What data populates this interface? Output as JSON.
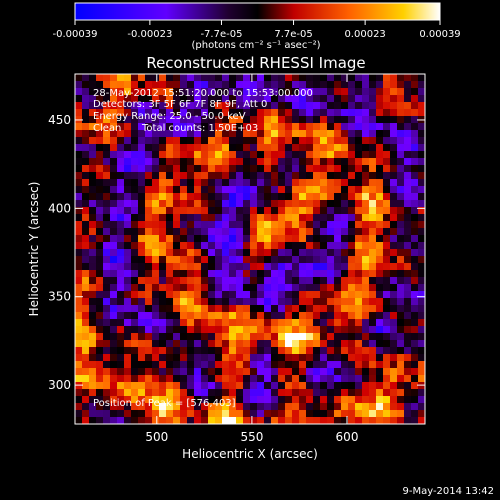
{
  "colorbar": {
    "ticks": [
      "-0.00039",
      "-0.00023",
      "-7.7e-05",
      "7.7e-05",
      "0.00023",
      "0.00039"
    ],
    "unit_label": "(photons cm⁻² s⁻¹ asec⁻²)",
    "range": [
      -0.00039,
      0.00039
    ]
  },
  "chart_data": {
    "type": "heatmap",
    "title": "Reconstructed RHESSI Image",
    "xlabel": "Heliocentric X (arcsec)",
    "ylabel": "Heliocentric Y (arcsec)",
    "xlim": [
      457,
      641
    ],
    "ylim": [
      278,
      476
    ],
    "xticks": [
      500,
      550,
      600
    ],
    "yticks": [
      300,
      350,
      400,
      450
    ],
    "annotations": [
      "28-May-2012 15:51:20.000 to 15:53:00.000",
      "Detectors: 3F 5F 6F 7F 8F 9F, Att 0",
      "Energy Range: 25.0 - 50.0 keV",
      "Clean",
      "Total counts: 1.50E+03"
    ],
    "peak_label": "Position of Peak = [576,403]",
    "peak": [
      576,
      403
    ],
    "source_ring_center": [
      560,
      385
    ],
    "colormap": [
      "#0000ff",
      "#8000ff",
      "#000000",
      "#ff0000",
      "#ff8000",
      "#ffff00",
      "#ffffff"
    ]
  },
  "footer": {
    "timestamp": "9-May-2014 13:42"
  }
}
